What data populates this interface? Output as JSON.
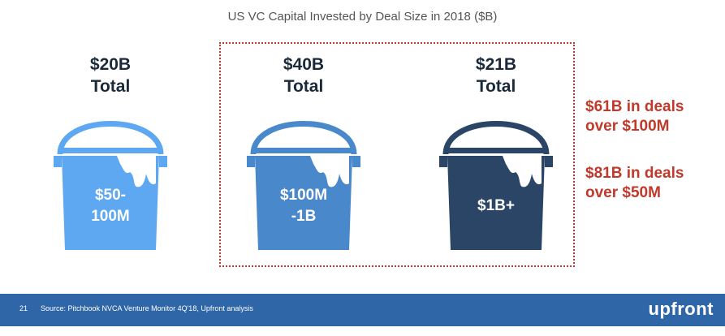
{
  "title": "US VC Capital Invested by Deal Size in 2018 ($B)",
  "colors": {
    "bucket_light": "#5ea8f2",
    "bucket_mid": "#4a88cc",
    "bucket_dark": "#2a4565",
    "accent_red": "#c0392b",
    "footer_blue": "#2f66a8"
  },
  "buckets": [
    {
      "total": "$20B",
      "total_word": "Total",
      "range_line1": "$50-",
      "range_line2": "100M"
    },
    {
      "total": "$40B",
      "total_word": "Total",
      "range_line1": "$100M",
      "range_line2": "-1B"
    },
    {
      "total": "$21B",
      "total_word": "Total",
      "range_line1": "$1B+",
      "range_line2": ""
    }
  ],
  "callouts": [
    {
      "line1": "$61B in deals",
      "line2": "over $100M"
    },
    {
      "line1": "$81B in deals",
      "line2": "over $50M"
    }
  ],
  "footer": {
    "page_number": "21",
    "source": "Source: Pitchbook NVCA Venture Monitor 4Q'18, Upfront analysis",
    "brand": "upfront"
  }
}
